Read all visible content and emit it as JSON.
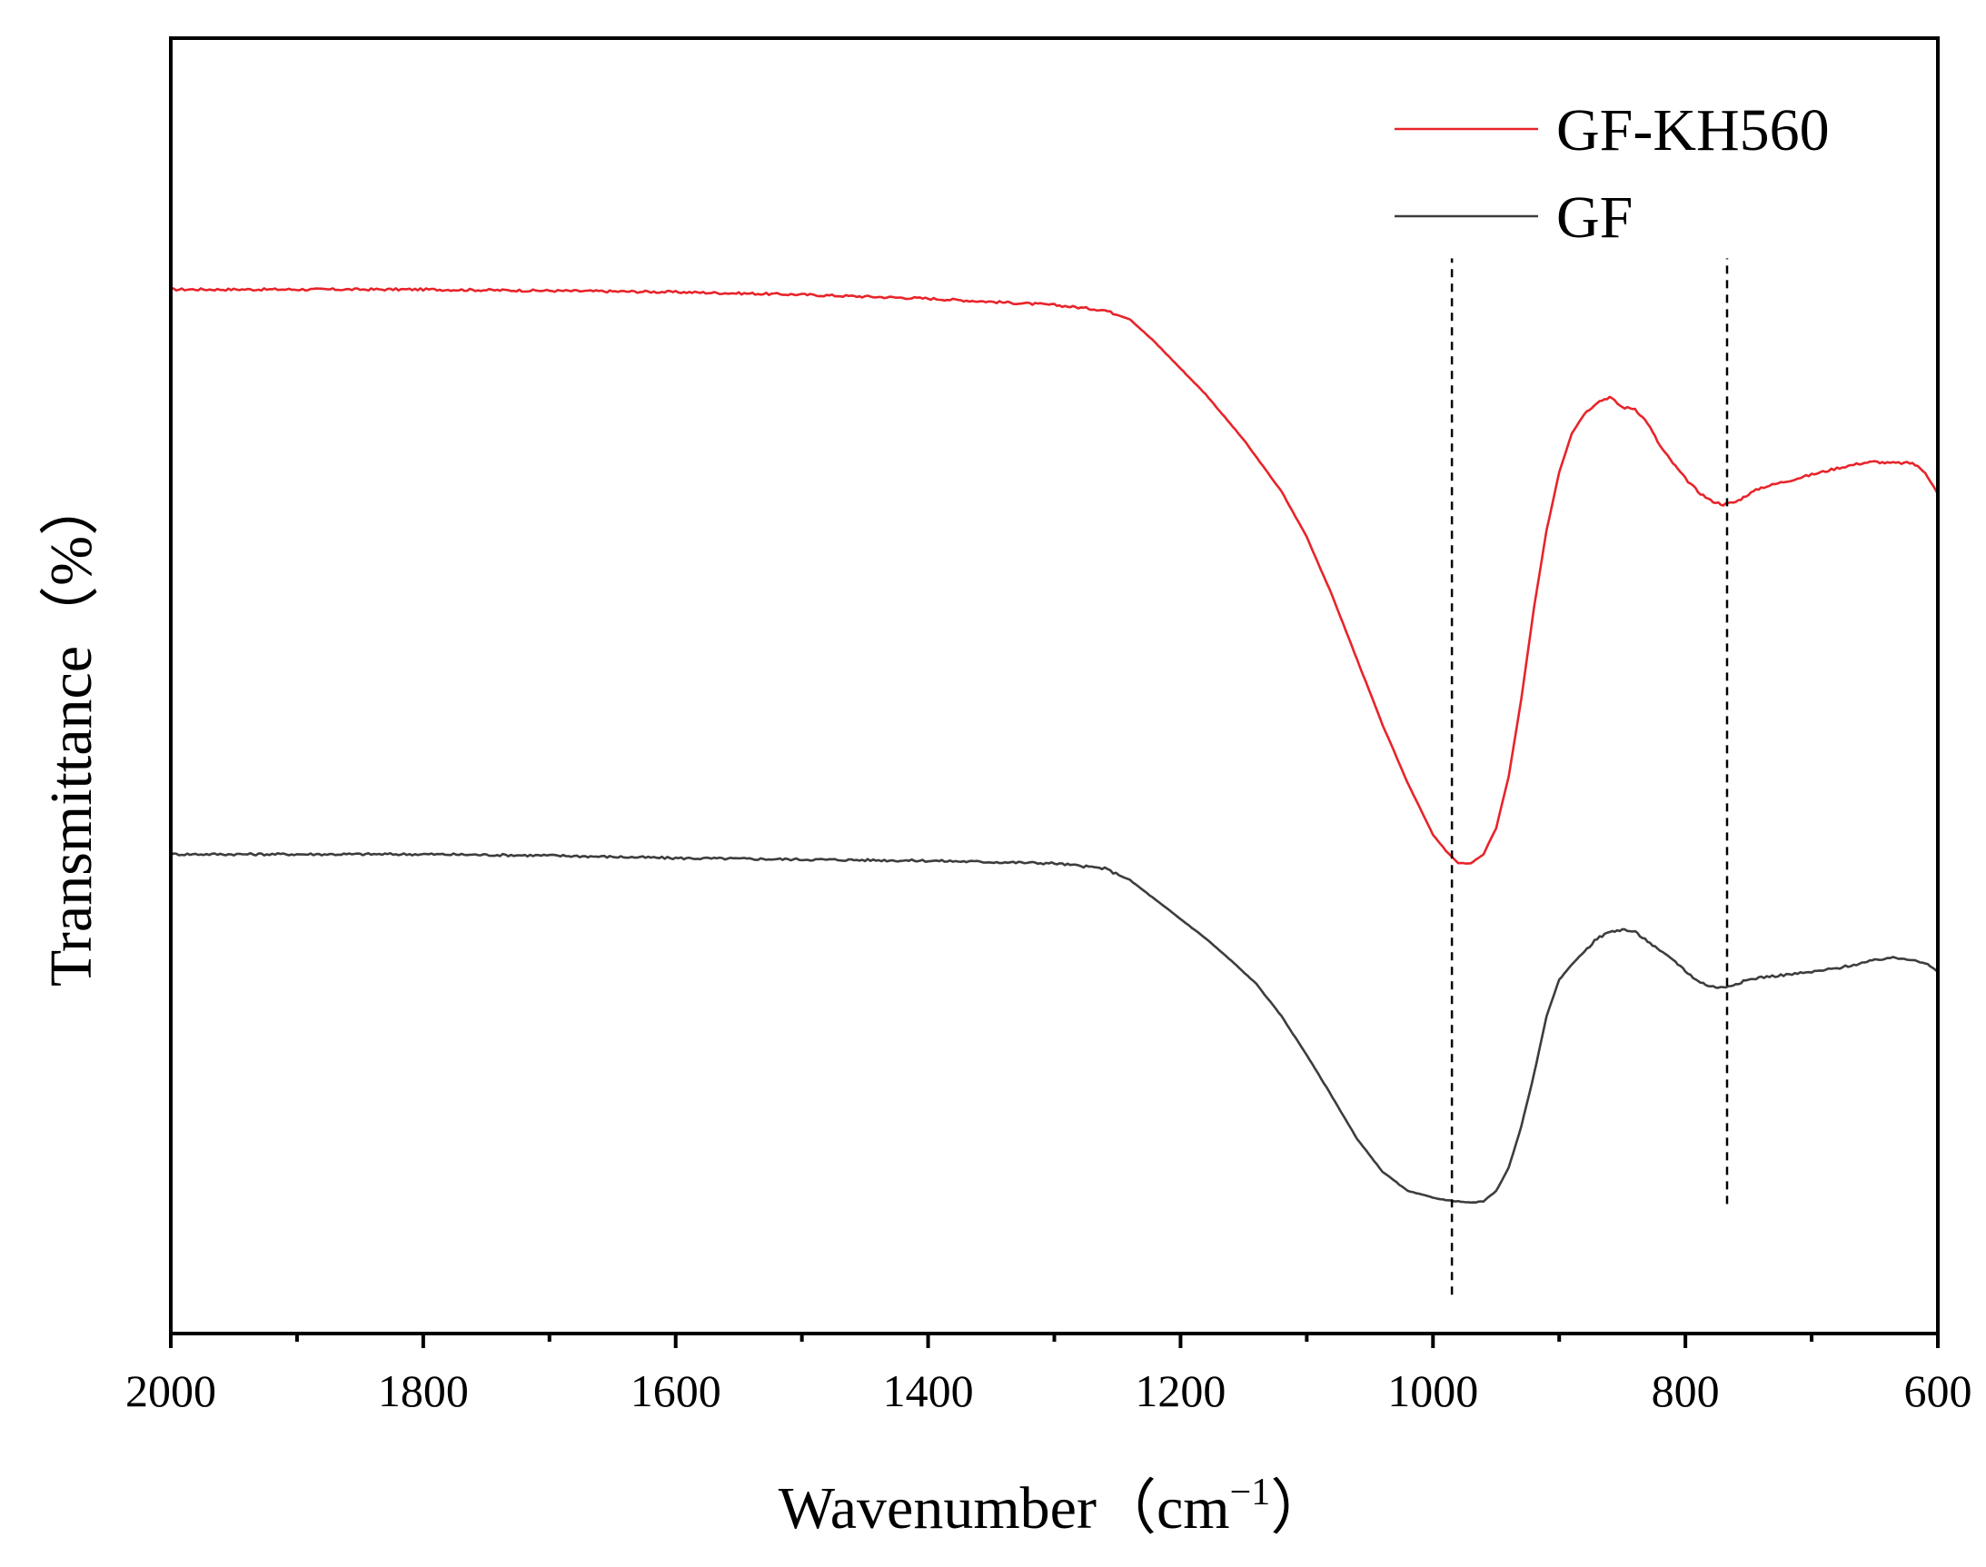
{
  "chart_data": {
    "type": "line",
    "title": "",
    "xlabel": "Wavenumber（cm",
    "xlabel_sup": "−1",
    "xlabel_close": "）",
    "ylabel": "Transmittance（%）",
    "xlim": [
      2000,
      600
    ],
    "ylim": [
      0,
      100
    ],
    "x_ticks": [
      2000,
      1800,
      1600,
      1400,
      1200,
      1000,
      800,
      600
    ],
    "x_minor_ticks": [
      1900,
      1700,
      1500,
      1300,
      1100,
      900,
      700
    ],
    "y_ticks_shown": false,
    "legend_position": "top-right",
    "reference_lines": [
      {
        "x": 985,
        "y_from": 3,
        "y_to": 83
      },
      {
        "x": 767,
        "y_from": 10,
        "y_to": 83
      }
    ],
    "series": [
      {
        "name": "GF-KH560",
        "color": "#e8242a",
        "noise": 0.18,
        "x": [
          2000,
          1900,
          1800,
          1700,
          1600,
          1500,
          1400,
          1300,
          1260,
          1240,
          1220,
          1200,
          1180,
          1150,
          1120,
          1100,
          1080,
          1060,
          1040,
          1020,
          1000,
          990,
          980,
          970,
          960,
          950,
          940,
          930,
          920,
          910,
          900,
          890,
          880,
          870,
          860,
          850,
          840,
          830,
          820,
          810,
          800,
          790,
          780,
          770,
          760,
          750,
          740,
          720,
          700,
          680,
          660,
          650,
          640,
          620,
          610,
          600
        ],
        "y": [
          80.6,
          80.6,
          80.6,
          80.5,
          80.4,
          80.2,
          79.9,
          79.4,
          79.0,
          78.3,
          76.5,
          74.5,
          72.5,
          69.0,
          65.0,
          61.5,
          57.0,
          52.0,
          47.0,
          42.5,
          38.5,
          37.3,
          36.3,
          36.3,
          37.0,
          39.0,
          43.0,
          49.0,
          56.0,
          62.0,
          66.5,
          69.5,
          71.0,
          71.9,
          72.3,
          71.5,
          71.4,
          70.3,
          68.5,
          67.2,
          66.0,
          65.0,
          64.3,
          64.0,
          64.2,
          64.8,
          65.3,
          65.8,
          66.3,
          66.8,
          67.2,
          67.3,
          67.2,
          67.2,
          66.5,
          64.8
        ]
      },
      {
        "name": "GF",
        "color": "#3d3d3d",
        "noise": 0.18,
        "x": [
          2000,
          1900,
          1800,
          1700,
          1600,
          1500,
          1400,
          1300,
          1260,
          1240,
          1220,
          1200,
          1180,
          1160,
          1140,
          1120,
          1100,
          1080,
          1060,
          1040,
          1020,
          1000,
          990,
          980,
          970,
          960,
          950,
          940,
          930,
          920,
          910,
          900,
          890,
          880,
          870,
          860,
          850,
          840,
          830,
          820,
          810,
          800,
          790,
          780,
          770,
          760,
          750,
          740,
          720,
          700,
          680,
          660,
          650,
          640,
          620,
          610,
          600
        ],
        "y": [
          37.0,
          37.0,
          37.0,
          36.9,
          36.7,
          36.6,
          36.5,
          36.3,
          35.9,
          35.0,
          33.5,
          32.0,
          30.5,
          28.8,
          27.0,
          24.5,
          21.5,
          18.3,
          15.0,
          12.5,
          11.0,
          10.5,
          10.3,
          10.2,
          10.1,
          10.2,
          11.0,
          12.8,
          16.0,
          20.0,
          24.5,
          27.3,
          28.5,
          29.5,
          30.5,
          31.0,
          31.2,
          31.0,
          30.3,
          29.5,
          28.9,
          28.0,
          27.2,
          26.8,
          26.7,
          27.0,
          27.3,
          27.5,
          27.7,
          27.9,
          28.2,
          28.6,
          28.8,
          29.0,
          28.9,
          28.6,
          27.9
        ]
      }
    ]
  }
}
